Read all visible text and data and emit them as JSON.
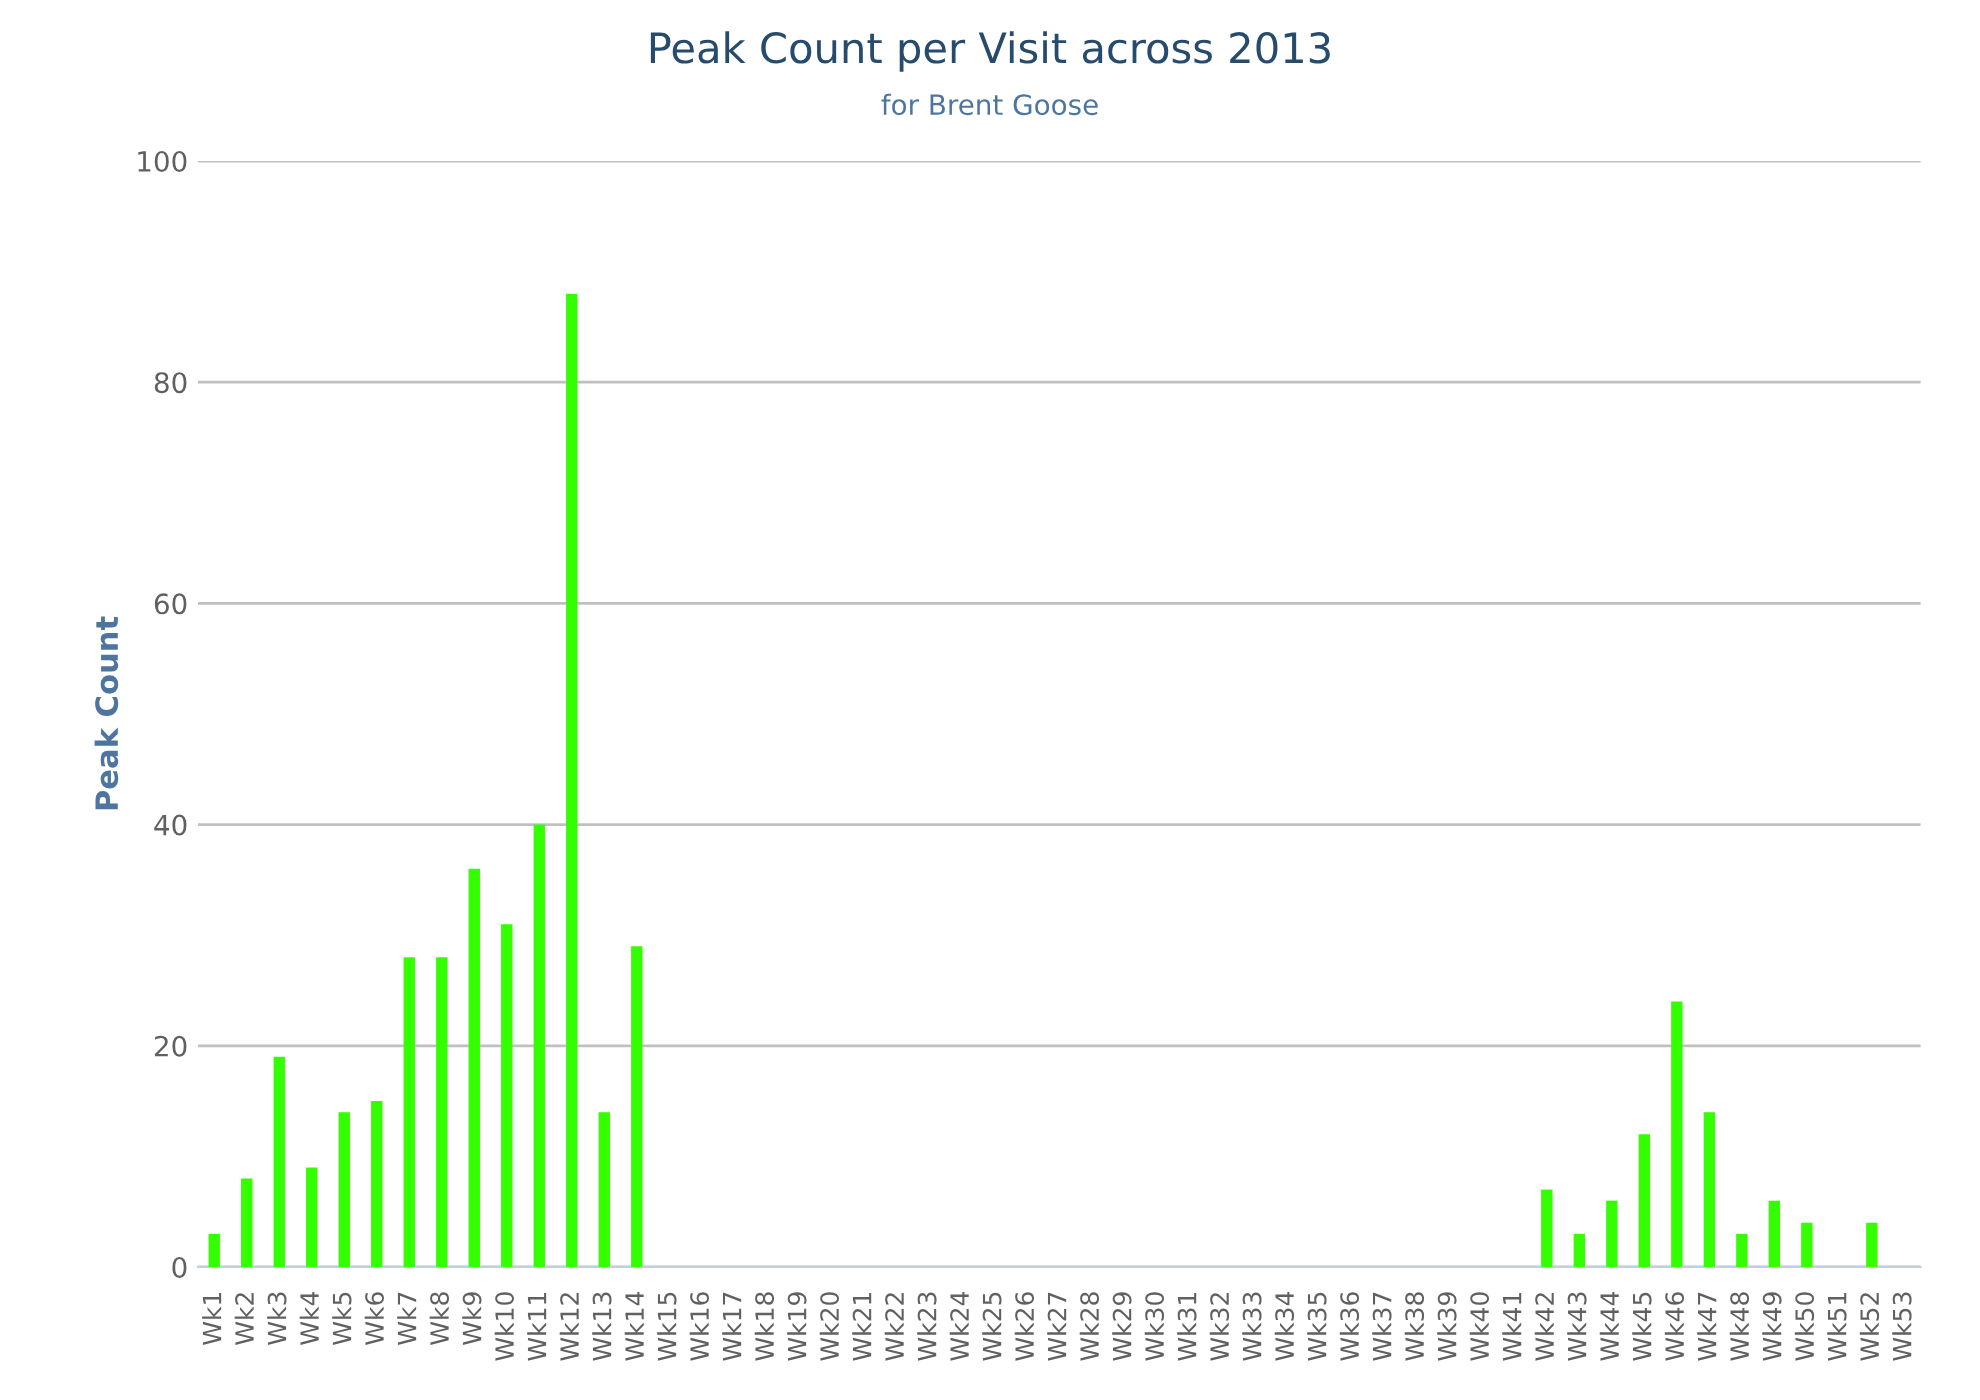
{
  "chart_data": {
    "type": "bar",
    "title": "Peak Count per Visit across 2013",
    "subtitle": "for Brent Goose",
    "ylabel": "Peak Count",
    "categories": [
      "Wk1",
      "Wk2",
      "Wk3",
      "Wk4",
      "Wk5",
      "Wk6",
      "Wk7",
      "Wk8",
      "Wk9",
      "Wk10",
      "Wk11",
      "Wk12",
      "Wk13",
      "Wk14",
      "Wk15",
      "Wk16",
      "Wk17",
      "Wk18",
      "Wk19",
      "Wk20",
      "Wk21",
      "Wk22",
      "Wk23",
      "Wk24",
      "Wk25",
      "Wk26",
      "Wk27",
      "Wk28",
      "Wk29",
      "Wk30",
      "Wk31",
      "Wk32",
      "Wk33",
      "Wk34",
      "Wk35",
      "Wk36",
      "Wk37",
      "Wk38",
      "Wk39",
      "Wk40",
      "Wk41",
      "Wk42",
      "Wk43",
      "Wk44",
      "Wk45",
      "Wk46",
      "Wk47",
      "Wk48",
      "Wk49",
      "Wk50",
      "Wk51",
      "Wk52",
      "Wk53"
    ],
    "values": [
      3,
      8,
      19,
      9,
      14,
      15,
      28,
      28,
      36,
      31,
      40,
      88,
      14,
      29,
      0,
      0,
      0,
      0,
      0,
      0,
      0,
      0,
      0,
      0,
      0,
      0,
      0,
      0,
      0,
      0,
      0,
      0,
      0,
      0,
      0,
      0,
      0,
      0,
      0,
      0,
      0,
      7,
      3,
      6,
      12,
      24,
      14,
      3,
      6,
      4,
      0,
      4,
      0
    ],
    "color": "#33ff00",
    "ylim": [
      0,
      100
    ],
    "yticks": [
      0,
      20,
      40,
      60,
      80,
      100
    ],
    "grid": "y"
  }
}
